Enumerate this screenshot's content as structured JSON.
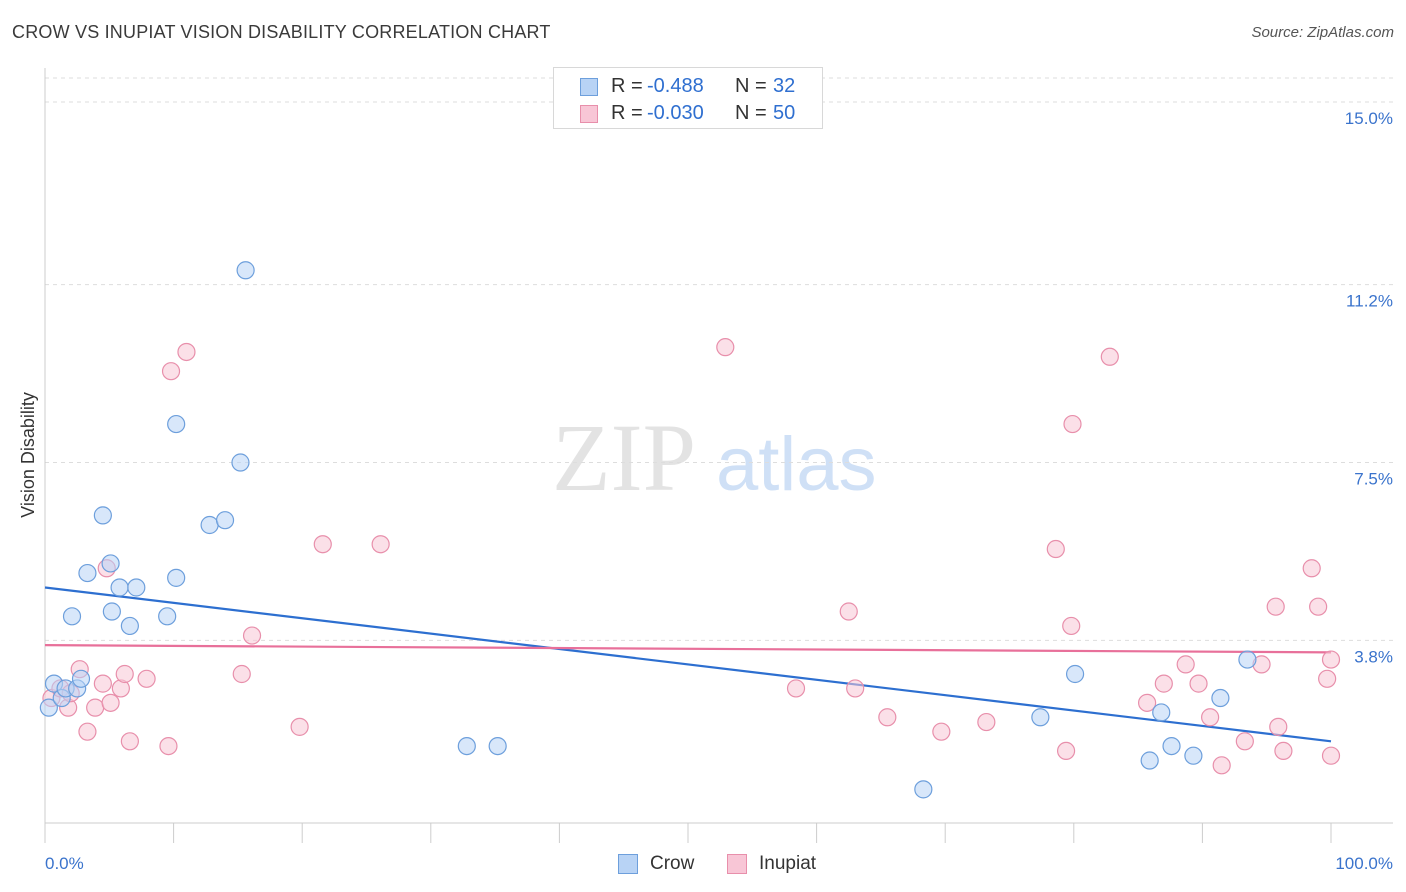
{
  "title": "CROW VS INUPIAT VISION DISABILITY CORRELATION CHART",
  "source": "Source: ZipAtlas.com",
  "watermark": {
    "zip": "ZIP",
    "atlas": "atlas"
  },
  "legend_top": [
    {
      "r_label": "R =",
      "r_value": "-0.488",
      "n_label": "N =",
      "n_value": "32"
    },
    {
      "r_label": "R =",
      "r_value": "-0.030",
      "n_label": "N =",
      "n_value": "50"
    }
  ],
  "legend_bottom": [
    {
      "label": "Crow"
    },
    {
      "label": "Inupiat"
    }
  ],
  "colors": {
    "crow_fill": "#b8d3f5",
    "crow_stroke": "#6d9fdc",
    "crow_line": "#2d6fd0",
    "inupiat_fill": "#f8c6d6",
    "inupiat_stroke": "#e88fab",
    "inupiat_line": "#e8709a",
    "tick_label": "#3a73cc",
    "grid": "#dddddd"
  },
  "chart_data": {
    "type": "scatter",
    "title": "CROW VS INUPIAT VISION DISABILITY CORRELATION CHART",
    "xlabel": "",
    "ylabel": "Vision Disability",
    "xlim": [
      0,
      100
    ],
    "ylim": [
      0,
      15.5
    ],
    "x_tick_labels": [
      "0.0%",
      "100.0%"
    ],
    "y_ticks": [
      3.8,
      7.5,
      11.2,
      15.0
    ],
    "y_tick_labels": [
      "3.8%",
      "7.5%",
      "11.2%",
      "15.0%"
    ],
    "grid": "horizontal dashed",
    "legend_position": "top-center",
    "series": [
      {
        "name": "Crow",
        "points": [
          [
            0.3,
            2.4
          ],
          [
            0.7,
            2.9
          ],
          [
            1.3,
            2.6
          ],
          [
            1.6,
            2.8
          ],
          [
            2.1,
            4.3
          ],
          [
            2.5,
            2.8
          ],
          [
            2.8,
            3.0
          ],
          [
            3.3,
            5.2
          ],
          [
            4.5,
            6.4
          ],
          [
            5.1,
            5.4
          ],
          [
            5.2,
            4.4
          ],
          [
            5.8,
            4.9
          ],
          [
            6.6,
            4.1
          ],
          [
            7.1,
            4.9
          ],
          [
            9.5,
            4.3
          ],
          [
            10.2,
            5.1
          ],
          [
            10.2,
            8.3
          ],
          [
            12.8,
            6.2
          ],
          [
            14.0,
            6.3
          ],
          [
            15.2,
            7.5
          ],
          [
            15.6,
            11.5
          ],
          [
            32.8,
            1.6
          ],
          [
            35.2,
            1.6
          ],
          [
            68.3,
            0.7
          ],
          [
            77.4,
            2.2
          ],
          [
            80.1,
            3.1
          ],
          [
            85.9,
            1.3
          ],
          [
            86.8,
            2.3
          ],
          [
            87.6,
            1.6
          ],
          [
            89.3,
            1.4
          ],
          [
            91.4,
            2.6
          ],
          [
            93.5,
            3.4
          ]
        ],
        "trend": [
          [
            0,
            4.9
          ],
          [
            100,
            1.7
          ]
        ]
      },
      {
        "name": "Inupiat",
        "points": [
          [
            0.5,
            2.6
          ],
          [
            1.2,
            2.8
          ],
          [
            1.8,
            2.4
          ],
          [
            2.0,
            2.7
          ],
          [
            2.7,
            3.2
          ],
          [
            3.3,
            1.9
          ],
          [
            3.9,
            2.4
          ],
          [
            4.5,
            2.9
          ],
          [
            4.8,
            5.3
          ],
          [
            5.1,
            2.5
          ],
          [
            5.9,
            2.8
          ],
          [
            6.2,
            3.1
          ],
          [
            6.6,
            1.7
          ],
          [
            7.9,
            3.0
          ],
          [
            9.6,
            1.6
          ],
          [
            9.8,
            9.4
          ],
          [
            11.0,
            9.8
          ],
          [
            15.3,
            3.1
          ],
          [
            16.1,
            3.9
          ],
          [
            19.8,
            2.0
          ],
          [
            21.6,
            5.8
          ],
          [
            26.1,
            5.8
          ],
          [
            52.9,
            9.9
          ],
          [
            58.4,
            2.8
          ],
          [
            62.5,
            4.4
          ],
          [
            63.0,
            2.8
          ],
          [
            65.5,
            2.2
          ],
          [
            69.7,
            1.9
          ],
          [
            73.2,
            2.1
          ],
          [
            78.6,
            5.7
          ],
          [
            79.4,
            1.5
          ],
          [
            79.8,
            4.1
          ],
          [
            79.9,
            8.3
          ],
          [
            82.8,
            9.7
          ],
          [
            85.7,
            2.5
          ],
          [
            87.0,
            2.9
          ],
          [
            88.7,
            3.3
          ],
          [
            89.7,
            2.9
          ],
          [
            90.6,
            2.2
          ],
          [
            91.5,
            1.2
          ],
          [
            93.3,
            1.7
          ],
          [
            94.6,
            3.3
          ],
          [
            95.7,
            4.5
          ],
          [
            95.9,
            2.0
          ],
          [
            96.3,
            1.5
          ],
          [
            98.5,
            5.3
          ],
          [
            99.0,
            4.5
          ],
          [
            99.7,
            3.0
          ],
          [
            100.0,
            3.4
          ],
          [
            100.0,
            1.4
          ]
        ],
        "trend": [
          [
            0,
            3.7
          ],
          [
            100,
            3.55
          ]
        ]
      }
    ]
  }
}
